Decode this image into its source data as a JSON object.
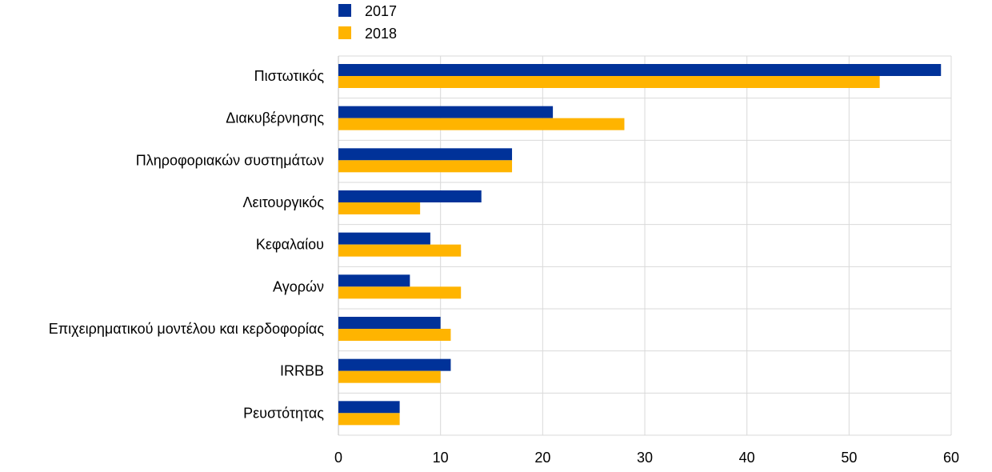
{
  "chart_data": {
    "type": "bar",
    "orientation": "horizontal",
    "categories": [
      "Πιστωτικός",
      "Διακυβέρνησης",
      "Πληροφοριακών συστημάτων",
      "Λειτουργικός",
      "Κεφαλαίου",
      "Αγορών",
      "Επιχειρηματικού μοντέλου και κερδοφορίας",
      "IRRBB",
      "Ρευστότητας"
    ],
    "series": [
      {
        "name": "2017",
        "color": "#003299",
        "values": [
          59,
          21,
          17,
          14,
          9,
          7,
          10,
          11,
          6
        ]
      },
      {
        "name": "2018",
        "color": "#FFB400",
        "values": [
          53,
          28,
          17,
          8,
          12,
          12,
          11,
          10,
          6
        ]
      }
    ],
    "xlim": [
      0,
      60
    ],
    "xticks": [
      "0",
      "10",
      "20",
      "30",
      "40",
      "50",
      "60"
    ],
    "title": "",
    "xlabel": "",
    "ylabel": "",
    "grid": "vertical",
    "legend_position": "top-left",
    "grid_color": "#d9d9d9"
  }
}
